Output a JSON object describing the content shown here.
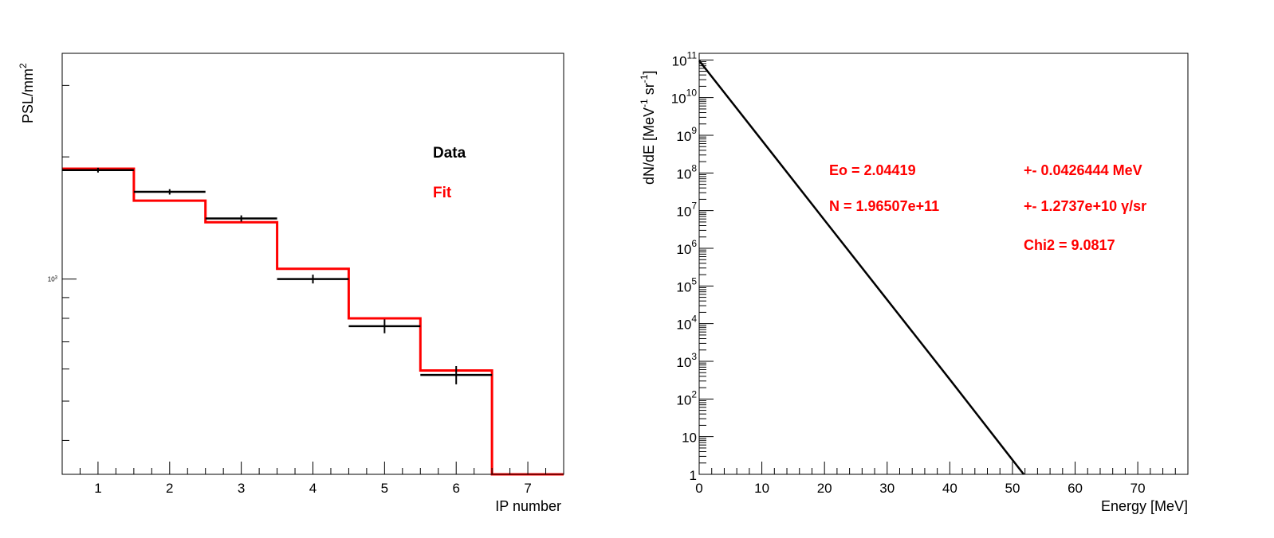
{
  "colors": {
    "data": "#000000",
    "fit": "#ff0000",
    "axis": "#000000",
    "annotation": "#ff0000"
  },
  "chart_data": [
    {
      "type": "bar",
      "subtype": "step-histogram",
      "title": "",
      "xlabel": "IP number",
      "ylabel": "PSL/mm",
      "ylabel_sup": "2",
      "y_scale": "log",
      "xlim": [
        0.5,
        7.5
      ],
      "ylim": [
        330,
        3600
      ],
      "x_ticks": [
        1,
        2,
        3,
        4,
        5,
        6,
        7
      ],
      "x_tick_labels": [
        "1",
        "2",
        "3",
        "4",
        "5",
        "6",
        "7"
      ],
      "y_major_tick": {
        "value": 1000,
        "base": "10",
        "exp": "3"
      },
      "legend": [
        {
          "label": "Data",
          "color": "#000000"
        },
        {
          "label": "Fit",
          "color": "#ff0000"
        }
      ],
      "series": [
        {
          "name": "Data",
          "style": "points-with-errors",
          "x": [
            1,
            2,
            3,
            4,
            5,
            6
          ],
          "values": [
            1855,
            1640,
            1410,
            1000,
            765,
            580
          ],
          "errors": [
            25,
            25,
            25,
            25,
            30,
            30
          ]
        },
        {
          "name": "Fit",
          "style": "step",
          "x": [
            1,
            2,
            3,
            4,
            5,
            6,
            7
          ],
          "values": [
            1870,
            1560,
            1380,
            1060,
            800,
            595,
            330
          ]
        }
      ]
    },
    {
      "type": "line",
      "title": "",
      "xlabel": "Energy [MeV]",
      "ylabel": "dN/dE [MeV^-1 sr^-1]",
      "y_scale": "log",
      "xlim": [
        0,
        78
      ],
      "ylim": [
        1,
        150000000000.0
      ],
      "x_ticks": [
        0,
        10,
        20,
        30,
        40,
        50,
        60,
        70
      ],
      "x_tick_labels": [
        "0",
        "10",
        "20",
        "30",
        "40",
        "50",
        "60",
        "70"
      ],
      "y_tick_labels": [
        {
          "value": 1,
          "base": "1",
          "exp": ""
        },
        {
          "value": 10,
          "base": "10",
          "exp": ""
        },
        {
          "value": 100,
          "base": "10",
          "exp": "2"
        },
        {
          "value": 1000,
          "base": "10",
          "exp": "3"
        },
        {
          "value": 10000,
          "base": "10",
          "exp": "4"
        },
        {
          "value": 100000,
          "base": "10",
          "exp": "5"
        },
        {
          "value": 1000000,
          "base": "10",
          "exp": "6"
        },
        {
          "value": 10000000,
          "base": "10",
          "exp": "7"
        },
        {
          "value": 100000000,
          "base": "10",
          "exp": "8"
        },
        {
          "value": 1000000000,
          "base": "10",
          "exp": "9"
        },
        {
          "value": 10000000000,
          "base": "10",
          "exp": "10"
        },
        {
          "value": 100000000000,
          "base": "10",
          "exp": "11"
        }
      ],
      "series": [
        {
          "style": "line",
          "x": [
            0,
            10,
            20,
            30,
            40,
            51.8
          ],
          "values": [
            96000000000.0,
            735000000.0,
            5600000.0,
            43000.0,
            330,
            1
          ]
        }
      ],
      "annotations": [
        {
          "col1": "Eo =  2.04419",
          "col2": "+-  0.0426444 MeV"
        },
        {
          "col1": "N =  1.96507e+11",
          "col2": "+-  1.2737e+10 γ/sr"
        },
        {
          "col1": "",
          "col2": "Chi2 =  9.0817"
        }
      ]
    }
  ]
}
